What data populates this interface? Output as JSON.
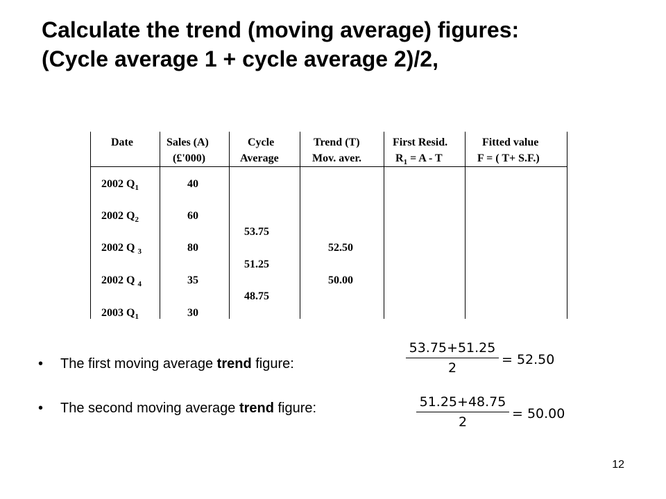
{
  "title": {
    "line1": "Calculate the trend (moving average) figures:",
    "line2": "(Cycle average 1 + cycle average 2)/2,"
  },
  "table": {
    "headers": {
      "date": "Date",
      "sales_l1": "Sales (A)",
      "sales_l2": "(£'000)",
      "cycle_l1": "Cycle",
      "cycle_l2": "Average",
      "trend_l1": "Trend (T)",
      "trend_l2": "Mov. aver.",
      "resid_l1": "First Resid.",
      "resid_l2_pre": "R",
      "resid_l2_sub": "1",
      "resid_l2_post": " = A - T",
      "fitted_l1": "Fitted value",
      "fitted_l2": "F = ( T+ S.F.)"
    },
    "rows": [
      {
        "date": "2002 Q",
        "q": "1",
        "sales": "40"
      },
      {
        "date": "2002 Q",
        "q": "2",
        "sales": "60"
      },
      {
        "date": "2002 Q ",
        "q": "3",
        "sales": "80"
      },
      {
        "date": "2002 Q ",
        "q": "4",
        "sales": "35"
      },
      {
        "date": "2003 Q",
        "q": "1",
        "sales": "30"
      }
    ],
    "cycle_averages": [
      "53.75",
      "51.25",
      "48.75"
    ],
    "trends": [
      "52.50",
      "50.00"
    ]
  },
  "bullets": [
    {
      "dot": "•",
      "pre": "The first moving average ",
      "bold": "trend",
      "post": " figure:"
    },
    {
      "dot": "•",
      "pre": "The second moving average ",
      "bold": "trend",
      "post": " figure:"
    }
  ],
  "formulas": [
    {
      "a": "53.75",
      "op": "+",
      "b": "51.25",
      "den": "2",
      "eq": "=",
      "result": "52.50"
    },
    {
      "a": "51.25",
      "op": "+",
      "b": "48.75",
      "den": "2",
      "eq": "=",
      "result": "50.00"
    }
  ],
  "page_number": "12"
}
